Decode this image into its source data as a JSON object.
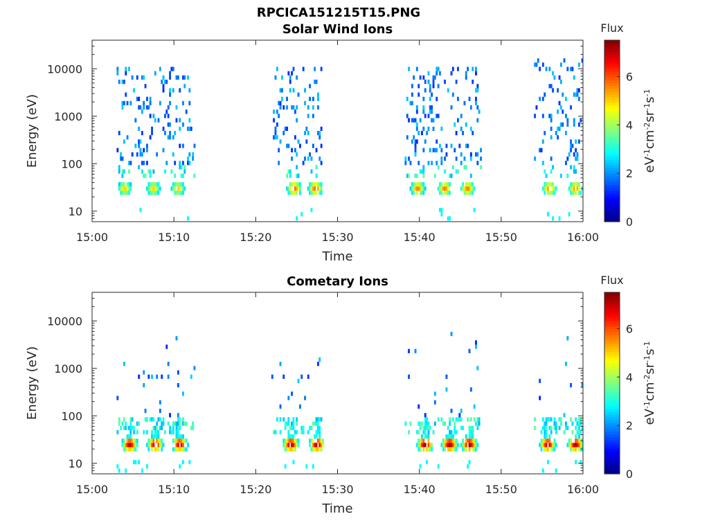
{
  "figure_title": "RPCICA151215T15.PNG",
  "chart_data": [
    {
      "type": "heatmap",
      "title": "Solar Wind Ions",
      "xlabel": "Time",
      "ylabel": "Energy (eV)",
      "x_ticks": [
        "15:00",
        "15:10",
        "15:20",
        "15:30",
        "15:40",
        "15:50",
        "16:00"
      ],
      "xlim": [
        "15:00",
        "16:00"
      ],
      "y_scale": "log",
      "y_ticks": [
        "10",
        "100",
        "1000",
        "10000"
      ],
      "ylim": [
        6,
        40000
      ],
      "colorbar": {
        "title": "Flux",
        "label": "eV-1cm-2sr-1s-1",
        "range": [
          0,
          7.5
        ],
        "ticks": [
          "0",
          "2",
          "4",
          "6"
        ],
        "colormap": "jet"
      },
      "bursts": [
        {
          "start_min": 3.0,
          "end_min": 12.4,
          "sub_peaks_min": [
            3.9,
            7.4,
            10.4
          ],
          "peak_energy_eV": 30,
          "peak_flux": 5.0,
          "scatter_energy_range_eV": [
            100,
            12000
          ]
        },
        {
          "start_min": 22.1,
          "end_min": 28.0,
          "sub_peaks_min": [
            24.6,
            27.2
          ],
          "peak_energy_eV": 30,
          "peak_flux": 5.8,
          "scatter_energy_range_eV": [
            100,
            12000
          ]
        },
        {
          "start_min": 38.2,
          "end_min": 47.6,
          "sub_peaks_min": [
            39.7,
            43.0,
            45.8
          ],
          "peak_energy_eV": 30,
          "peak_flux": 5.6,
          "scatter_energy_range_eV": [
            100,
            12000
          ]
        },
        {
          "start_min": 54.0,
          "end_min": 60.0,
          "sub_peaks_min": [
            55.8,
            59.0
          ],
          "peak_energy_eV": 30,
          "peak_flux": 5.5,
          "scatter_energy_range_eV": [
            100,
            15000
          ]
        }
      ]
    },
    {
      "type": "heatmap",
      "title": "Cometary Ions",
      "xlabel": "Time",
      "ylabel": "Energy (eV)",
      "x_ticks": [
        "15:00",
        "15:10",
        "15:20",
        "15:30",
        "15:40",
        "15:50",
        "16:00"
      ],
      "xlim": [
        "15:00",
        "16:00"
      ],
      "y_scale": "log",
      "y_ticks": [
        "10",
        "100",
        "1000",
        "10000"
      ],
      "ylim": [
        6,
        40000
      ],
      "colorbar": {
        "title": "Flux",
        "label": "eV-1cm-2sr-1s-1",
        "range": [
          0,
          7.5
        ],
        "ticks": [
          "0",
          "2",
          "4",
          "6"
        ],
        "colormap": "jet"
      },
      "bursts": [
        {
          "start_min": 3.0,
          "end_min": 12.4,
          "sub_peaks_min": [
            4.5,
            7.6,
            10.6
          ],
          "peak_energy_eV": 25,
          "peak_flux": 7.0,
          "scatter_energy_range_eV": [
            100,
            7000
          ]
        },
        {
          "start_min": 21.9,
          "end_min": 28.2,
          "sub_peaks_min": [
            24.2,
            27.4
          ],
          "peak_energy_eV": 25,
          "peak_flux": 7.2,
          "scatter_energy_range_eV": [
            100,
            2000
          ]
        },
        {
          "start_min": 38.2,
          "end_min": 47.6,
          "sub_peaks_min": [
            40.6,
            43.6,
            46.0
          ],
          "peak_energy_eV": 25,
          "peak_flux": 7.3,
          "scatter_energy_range_eV": [
            100,
            6000
          ]
        },
        {
          "start_min": 54.0,
          "end_min": 60.0,
          "sub_peaks_min": [
            55.6,
            59.0
          ],
          "peak_energy_eV": 25,
          "peak_flux": 7.1,
          "scatter_energy_range_eV": [
            100,
            5000
          ]
        }
      ]
    }
  ]
}
